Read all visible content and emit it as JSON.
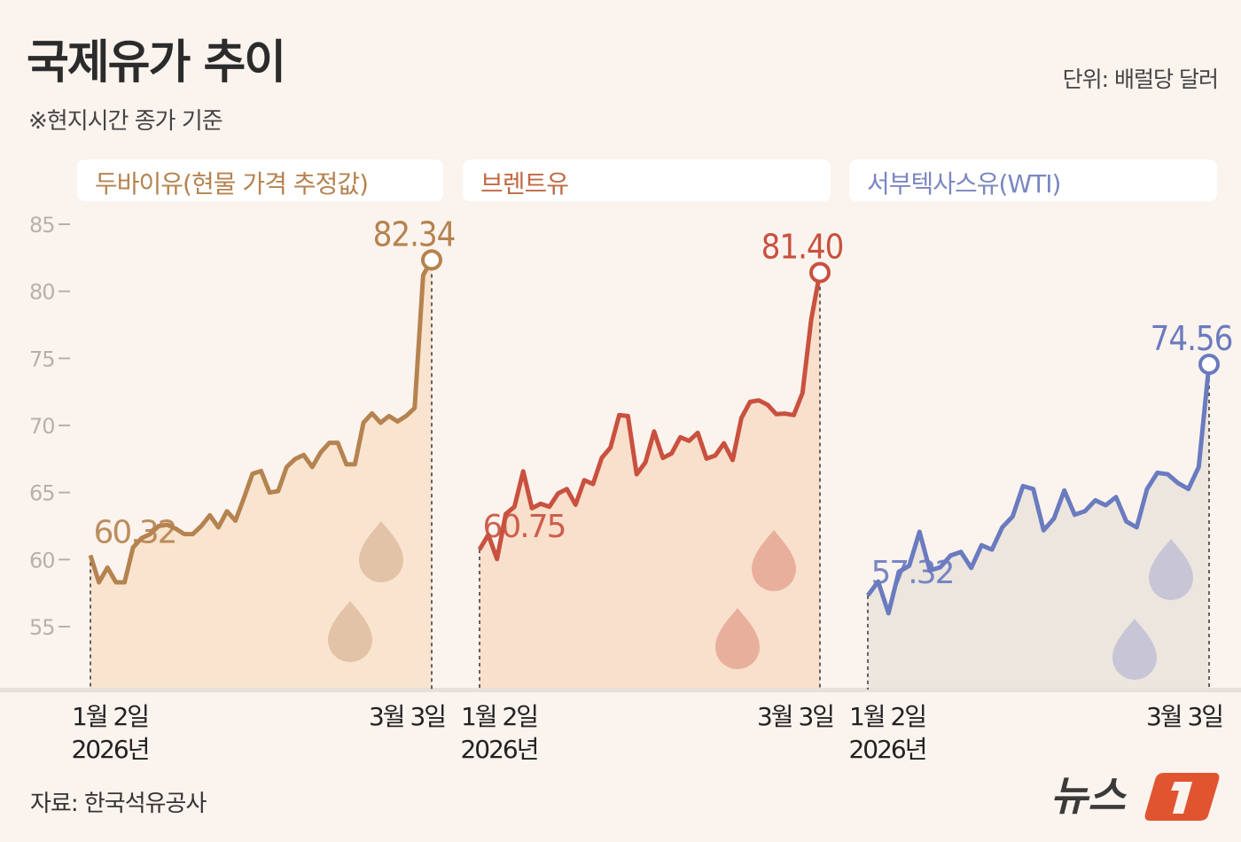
{
  "title": "국제유가 추이",
  "subtitle": "※현지시간 종가 기준",
  "unit": "단위: 배럴당 달러",
  "source": "자료: 한국석유공사",
  "logo_text": "뉴스1",
  "chart_data": {
    "type": "line",
    "yticks": [
      85,
      80,
      75,
      70,
      65,
      60,
      55
    ],
    "ylim": [
      50,
      85
    ],
    "x_labels": {
      "start": [
        "1월 2일",
        "2026년"
      ],
      "end": "3월 3일"
    },
    "series": [
      {
        "name": "두바이유(현물 가격 추정값)",
        "color": "#b5834f",
        "fill": "#f9e4d0",
        "drop": "#e2c3a8",
        "start_label": "60.32",
        "end_label": "82.34",
        "values": [
          60.32,
          58.3,
          59.4,
          58.3,
          58.3,
          60.9,
          61.6,
          61.9,
          62.5,
          62.6,
          62.3,
          61.9,
          61.9,
          62.5,
          63.3,
          62.4,
          63.6,
          62.9,
          64.6,
          66.4,
          66.6,
          65.0,
          65.1,
          66.9,
          67.5,
          67.8,
          66.9,
          68.0,
          68.7,
          68.7,
          67.1,
          67.1,
          70.2,
          70.9,
          70.2,
          70.7,
          70.3,
          70.7,
          71.3,
          81.2,
          82.34
        ]
      },
      {
        "name": "브렌트유",
        "color": "#c9513f",
        "fill": "#f9e0cc",
        "drop": "#e8b09c",
        "start_label": "60.75",
        "end_label": "81.40",
        "values": [
          60.75,
          61.85,
          60.04,
          63.39,
          63.94,
          66.58,
          63.83,
          64.16,
          63.94,
          64.93,
          65.26,
          64.09,
          65.92,
          65.63,
          67.58,
          68.35,
          70.77,
          70.7,
          66.36,
          67.24,
          69.55,
          67.58,
          67.91,
          69.12,
          68.85,
          69.45,
          67.53,
          67.75,
          68.67,
          67.42,
          70.55,
          71.76,
          71.87,
          71.54,
          70.84,
          70.88,
          70.77,
          72.42,
          77.9,
          81.4
        ]
      },
      {
        "name": "서부텍사스유(WTI)",
        "color": "#6a7bbf",
        "fill": "#ede6df",
        "drop": "#c8c6d6",
        "start_label": "57.32",
        "end_label": "74.56",
        "values": [
          57.32,
          58.36,
          56.0,
          59.09,
          59.53,
          62.07,
          59.2,
          59.42,
          60.3,
          60.57,
          59.38,
          61.07,
          60.74,
          62.4,
          63.21,
          65.48,
          65.26,
          62.18,
          63.06,
          65.15,
          63.34,
          63.61,
          64.42,
          64.05,
          64.66,
          62.84,
          62.4,
          65.26,
          66.47,
          66.36,
          65.7,
          65.26,
          66.91,
          74.56
        ]
      }
    ]
  }
}
